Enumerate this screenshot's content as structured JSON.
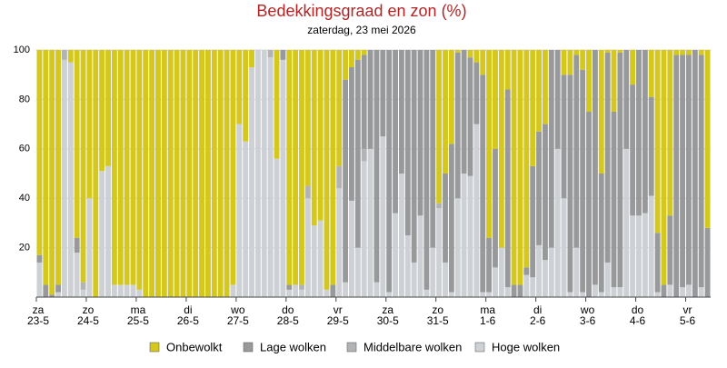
{
  "chart_data": {
    "type": "stacked-bar",
    "title": "Bedekkingsgraad en zon (%)",
    "subtitle": "zaterdag, 23 mei 2026",
    "ylim": [
      0,
      100
    ],
    "yticks": [
      20,
      40,
      60,
      80,
      100
    ],
    "grid": true,
    "categories": [
      {
        "day": "za",
        "date": "23-5"
      },
      null,
      null,
      null,
      null,
      null,
      null,
      null,
      {
        "day": "zo",
        "date": "24-5"
      },
      null,
      null,
      null,
      null,
      null,
      null,
      null,
      {
        "day": "ma",
        "date": "25-5"
      },
      null,
      null,
      null,
      null,
      null,
      null,
      null,
      {
        "day": "di",
        "date": "26-5"
      },
      null,
      null,
      null,
      null,
      null,
      null,
      null,
      {
        "day": "wo",
        "date": "27-5"
      },
      null,
      null,
      null,
      null,
      null,
      null,
      null,
      {
        "day": "do",
        "date": "28-5"
      },
      null,
      null,
      null,
      null,
      null,
      null,
      null,
      {
        "day": "vr",
        "date": "29-5"
      },
      null,
      null,
      null,
      null,
      null,
      null,
      null,
      {
        "day": "za",
        "date": "30-5"
      },
      null,
      null,
      null,
      null,
      null,
      null,
      null,
      {
        "day": "zo",
        "date": "31-5"
      },
      null,
      null,
      null,
      null,
      null,
      null,
      null,
      {
        "day": "ma",
        "date": "1-6"
      },
      null,
      null,
      null,
      null,
      null,
      null,
      null,
      {
        "day": "di",
        "date": "2-6"
      },
      null,
      null,
      null,
      null,
      null,
      null,
      null,
      {
        "day": "wo",
        "date": "3-6"
      },
      null,
      null,
      null,
      null,
      null,
      null,
      null,
      {
        "day": "do",
        "date": "4-6"
      },
      null,
      null,
      null,
      null,
      null,
      null,
      null,
      {
        "day": "vr",
        "date": "5-6"
      },
      null,
      null,
      null
    ],
    "series": [
      {
        "name": "Hoge wolken",
        "color": "#cdd0d4",
        "values": [
          14,
          0,
          0,
          2,
          96,
          95,
          18,
          3,
          40,
          0,
          51,
          53,
          5,
          5,
          5,
          5,
          3,
          0,
          0,
          0,
          0,
          0,
          0,
          0,
          0,
          0,
          0,
          0,
          0,
          0,
          0,
          5,
          70,
          63,
          93,
          100,
          100,
          97,
          56,
          96,
          3,
          5,
          3,
          40,
          29,
          31,
          3,
          0,
          44,
          6,
          39,
          20,
          55,
          60,
          6,
          65,
          2,
          34,
          50,
          25,
          14,
          33,
          3,
          20,
          36,
          14,
          2,
          40,
          50,
          49,
          70,
          2,
          2,
          12,
          20,
          4,
          0,
          0,
          9,
          8,
          21,
          15,
          20,
          60,
          40,
          2,
          20,
          2,
          0,
          5,
          2,
          14,
          4,
          4,
          60,
          33,
          33,
          34,
          41,
          2,
          0,
          5,
          0,
          4,
          5,
          0,
          4,
          0
        ]
      },
      {
        "name": "Middelbare wolken",
        "color": "#b2b3b5",
        "values": [
          0,
          0,
          0,
          0,
          4,
          0,
          0,
          3,
          0,
          0,
          0,
          0,
          0,
          0,
          0,
          0,
          0,
          0,
          0,
          0,
          0,
          0,
          0,
          0,
          0,
          0,
          0,
          0,
          0,
          0,
          0,
          0,
          0,
          0,
          0,
          0,
          0,
          3,
          0,
          0,
          0,
          0,
          2,
          5,
          0,
          0,
          0,
          0,
          9,
          0,
          0,
          0,
          5,
          0,
          0,
          0,
          0,
          0,
          0,
          0,
          0,
          0,
          0,
          0,
          2,
          0,
          0,
          0,
          0,
          0,
          0,
          0,
          0,
          0,
          0,
          0,
          0,
          0,
          0,
          0,
          0,
          0,
          0,
          0,
          0,
          0,
          0,
          0,
          0,
          0,
          0,
          0,
          0,
          0,
          0,
          0,
          0,
          0,
          0,
          0,
          0,
          0,
          0,
          0,
          0,
          0,
          0,
          0
        ]
      },
      {
        "name": "Lage wolken",
        "color": "#98999b",
        "values": [
          3,
          5,
          1,
          3,
          0,
          0,
          6,
          0,
          0,
          0,
          0,
          0,
          0,
          0,
          0,
          0,
          0,
          0,
          0,
          0,
          0,
          0,
          0,
          0,
          0,
          0,
          0,
          0,
          0,
          0,
          0,
          0,
          0,
          0,
          0,
          0,
          0,
          0,
          0,
          4,
          2,
          0,
          0,
          0,
          0,
          0,
          0,
          5,
          0,
          82,
          54,
          76,
          38,
          40,
          94,
          35,
          98,
          66,
          50,
          75,
          86,
          67,
          97,
          80,
          0,
          36,
          60,
          59,
          50,
          48,
          25,
          88,
          22,
          48,
          0,
          80,
          5,
          5,
          3,
          45,
          46,
          55,
          80,
          40,
          50,
          88,
          78,
          90,
          75,
          95,
          48,
          85,
          71,
          95,
          40,
          53,
          67,
          66,
          40,
          24,
          5,
          28,
          98,
          94,
          93,
          100,
          94,
          28
        ]
      },
      {
        "name": "Onbewolkt",
        "color": "#d4c71d",
        "values": [
          83,
          95,
          99,
          95,
          0,
          5,
          76,
          94,
          60,
          100,
          49,
          47,
          95,
          95,
          95,
          95,
          97,
          100,
          100,
          100,
          100,
          100,
          100,
          100,
          100,
          100,
          100,
          100,
          100,
          100,
          100,
          95,
          30,
          37,
          7,
          0,
          0,
          0,
          44,
          0,
          95,
          95,
          95,
          55,
          71,
          69,
          97,
          95,
          47,
          12,
          7,
          4,
          2,
          0,
          0,
          0,
          0,
          0,
          0,
          0,
          0,
          0,
          0,
          0,
          62,
          50,
          38,
          1,
          0,
          3,
          5,
          10,
          76,
          40,
          80,
          16,
          95,
          95,
          88,
          47,
          33,
          30,
          0,
          0,
          10,
          10,
          2,
          8,
          25,
          0,
          50,
          1,
          25,
          1,
          0,
          14,
          0,
          0,
          19,
          74,
          95,
          67,
          2,
          2,
          2,
          0,
          2,
          72
        ]
      }
    ]
  }
}
